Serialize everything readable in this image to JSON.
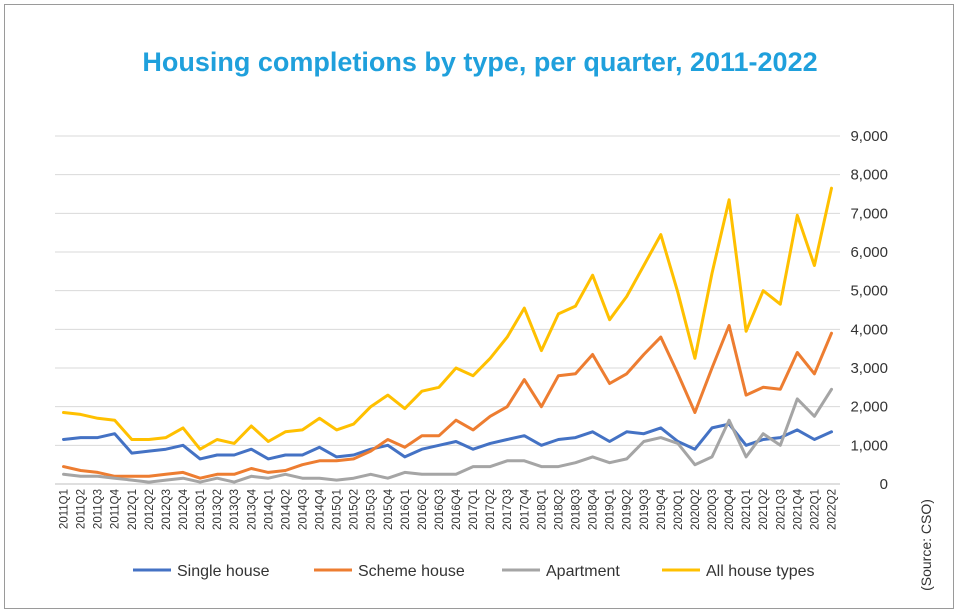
{
  "chart_data": {
    "type": "line",
    "title": "Housing completions by type, per quarter, 2011-2022",
    "source": "(Source: CSO)",
    "ylim": [
      0,
      9000
    ],
    "yticks": [
      "0",
      "1,000",
      "2,000",
      "3,000",
      "4,000",
      "5,000",
      "6,000",
      "7,000",
      "8,000",
      "9,000"
    ],
    "y_axis_side": "right",
    "grid": "horizontal",
    "legend_position": "bottom",
    "categories": [
      "2011Q1",
      "2011Q2",
      "2011Q3",
      "2011Q4",
      "2012Q1",
      "2012Q2",
      "2012Q3",
      "2012Q4",
      "2013Q1",
      "2013Q2",
      "2013Q3",
      "2013Q4",
      "2014Q1",
      "2014Q2",
      "2014Q3",
      "2014Q4",
      "2015Q1",
      "2015Q2",
      "2015Q3",
      "2015Q4",
      "2016Q1",
      "2016Q2",
      "2016Q3",
      "2016Q4",
      "2017Q1",
      "2017Q2",
      "2017Q3",
      "2017Q4",
      "2018Q1",
      "2018Q2",
      "2018Q3",
      "2018Q4",
      "2019Q1",
      "2019Q2",
      "2019Q3",
      "2019Q4",
      "2020Q1",
      "2020Q2",
      "2020Q3",
      "2020Q4",
      "2021Q1",
      "2021Q2",
      "2021Q3",
      "2021Q4",
      "2022Q1",
      "2022Q2"
    ],
    "series": [
      {
        "name": "Single house",
        "color": "#4472c4",
        "values": [
          1150,
          1200,
          1200,
          1300,
          800,
          850,
          900,
          1000,
          650,
          750,
          750,
          900,
          650,
          750,
          750,
          950,
          700,
          750,
          900,
          1000,
          700,
          900,
          1000,
          1100,
          900,
          1050,
          1150,
          1250,
          1000,
          1150,
          1200,
          1350,
          1100,
          1350,
          1300,
          1450,
          1100,
          900,
          1450,
          1550,
          1000,
          1150,
          1200,
          1400,
          1150,
          1350
        ]
      },
      {
        "name": "Scheme house",
        "color": "#ed7d31",
        "values": [
          450,
          350,
          300,
          200,
          200,
          200,
          250,
          300,
          150,
          250,
          250,
          400,
          300,
          350,
          500,
          600,
          600,
          650,
          850,
          1150,
          950,
          1250,
          1250,
          1650,
          1400,
          1750,
          2000,
          2700,
          2000,
          2800,
          2850,
          3350,
          2600,
          2850,
          3350,
          3800,
          2850,
          1850,
          3000,
          4100,
          2300,
          2500,
          2450,
          3400,
          2850,
          3900
        ]
      },
      {
        "name": "Apartment",
        "color": "#a5a5a5",
        "values": [
          250,
          200,
          200,
          150,
          100,
          50,
          100,
          150,
          50,
          150,
          50,
          200,
          150,
          250,
          150,
          150,
          100,
          150,
          250,
          150,
          300,
          250,
          250,
          250,
          450,
          450,
          600,
          600,
          450,
          450,
          550,
          700,
          550,
          650,
          1100,
          1200,
          1050,
          500,
          700,
          1650,
          700,
          1300,
          1000,
          2200,
          1750,
          2450
        ]
      },
      {
        "name": "All house types",
        "color": "#ffc000",
        "values": [
          1850,
          1800,
          1700,
          1650,
          1150,
          1150,
          1200,
          1450,
          900,
          1150,
          1050,
          1500,
          1100,
          1350,
          1400,
          1700,
          1400,
          1550,
          2000,
          2300,
          1950,
          2400,
          2500,
          3000,
          2800,
          3250,
          3800,
          4550,
          3450,
          4400,
          4600,
          5400,
          4250,
          4850,
          5650,
          6450,
          4950,
          3250,
          5450,
          7350,
          3950,
          5000,
          4650,
          6950,
          5650,
          7650
        ]
      }
    ]
  }
}
